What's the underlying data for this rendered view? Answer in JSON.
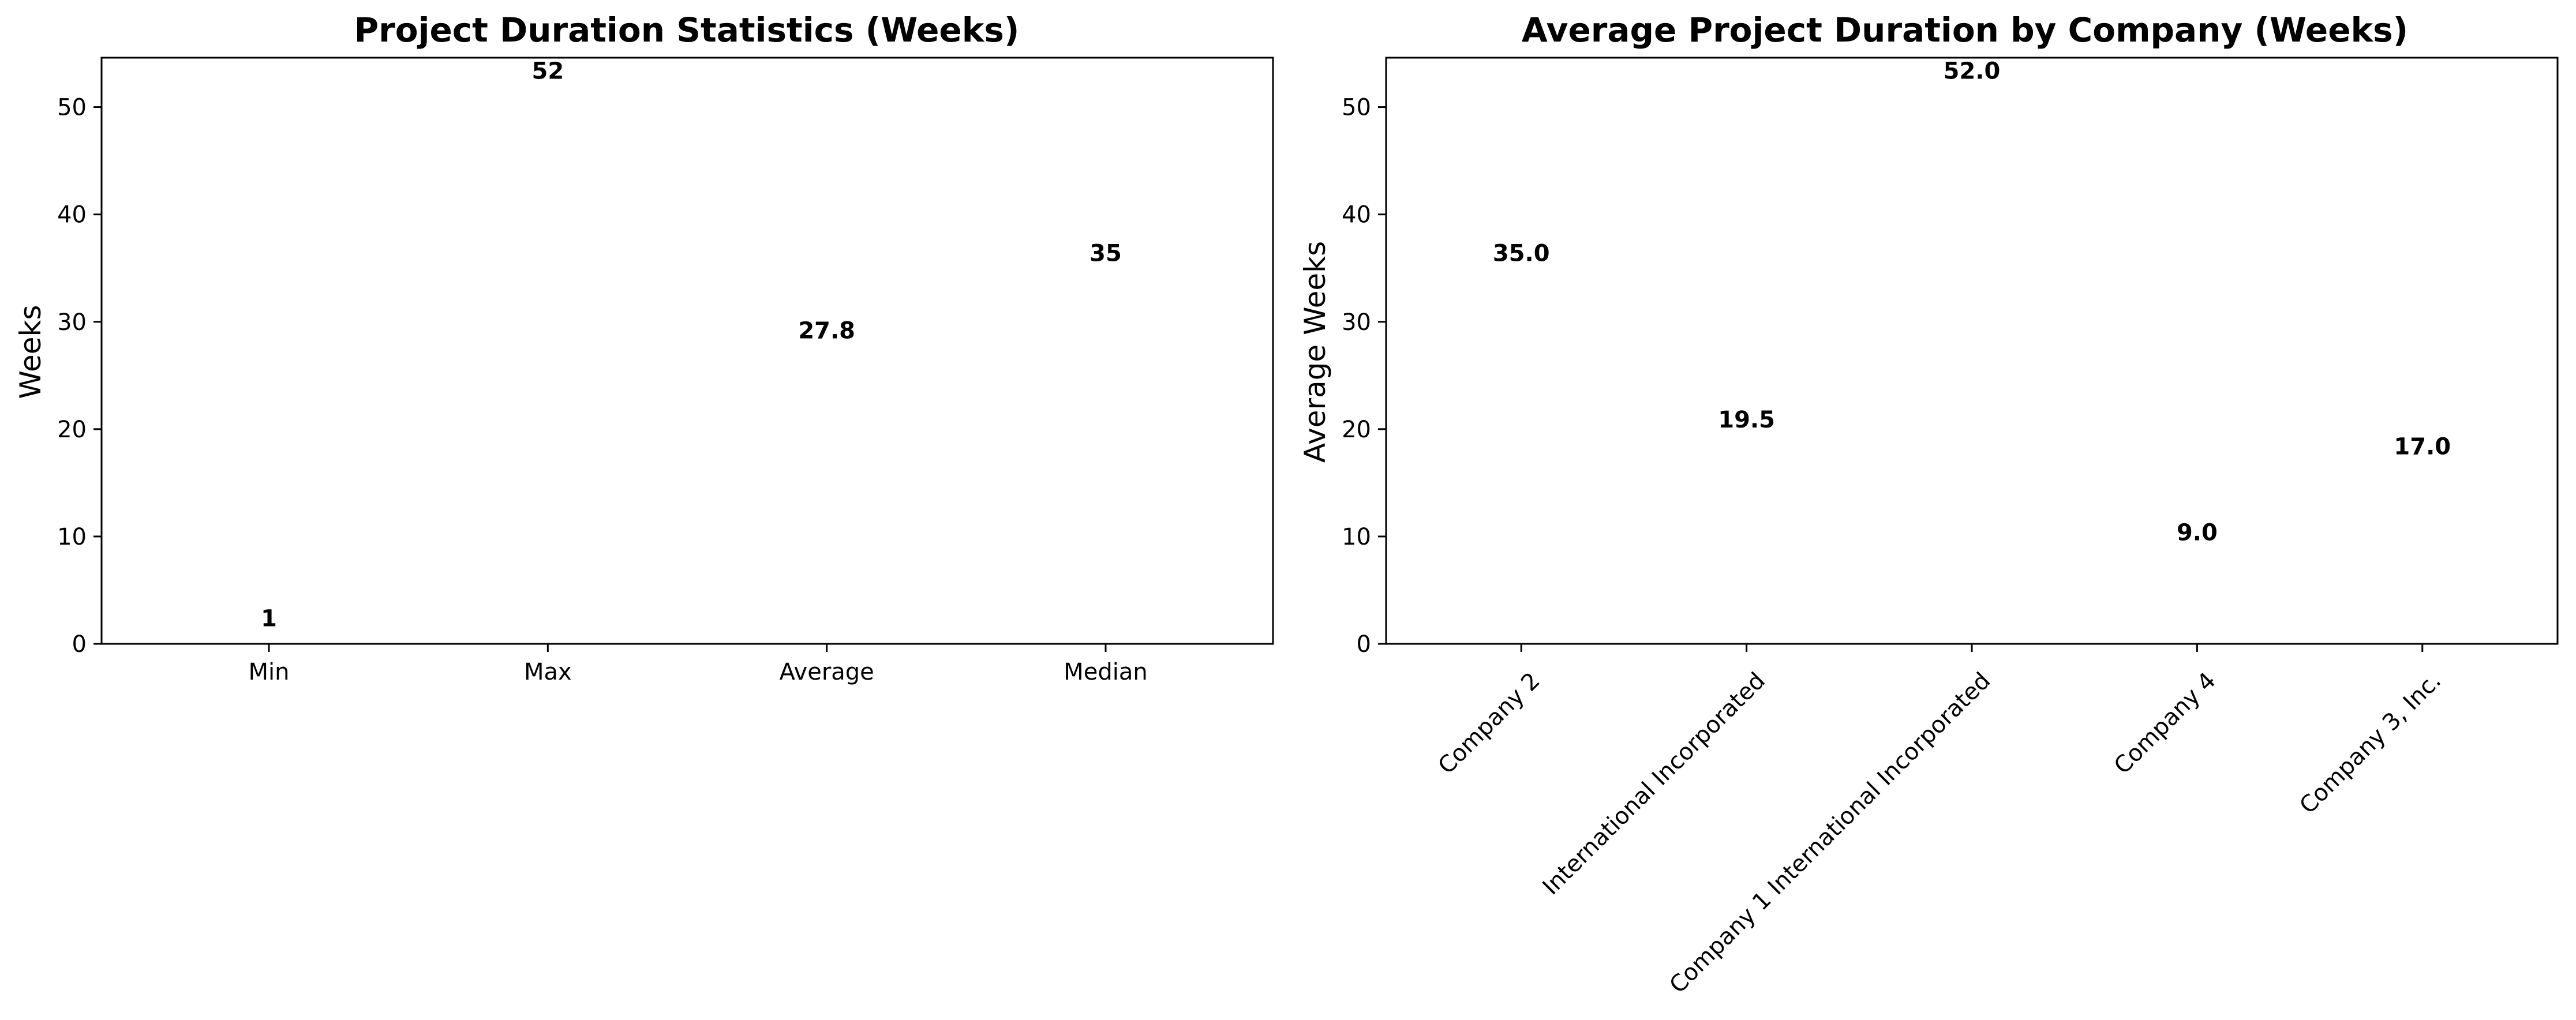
{
  "chart_data": [
    {
      "type": "bar",
      "title": "Project Duration Statistics (Weeks)",
      "xlabel": "",
      "ylabel": "Weeks",
      "categories": [
        "Min",
        "Max",
        "Average",
        "Median"
      ],
      "values": [
        1,
        52,
        27.8,
        35
      ],
      "value_labels": [
        "1",
        "52",
        "27.8",
        "35"
      ],
      "colors": [
        "#ff9999",
        "#66b3ff",
        "#99ff99",
        "#ffcc99"
      ],
      "ylim": [
        0,
        54.6
      ],
      "yticks": [
        0,
        10,
        20,
        30,
        40,
        50
      ],
      "grid": false,
      "legend": "none"
    },
    {
      "type": "bar",
      "title": "Average Project Duration by Company (Weeks)",
      "xlabel": "",
      "ylabel": "Average Weeks",
      "categories": [
        "Company 2",
        "International Incorporated",
        "Company 1 International Incorporated",
        "Company 4",
        "Company 3, Inc."
      ],
      "values": [
        35.0,
        19.5,
        52.0,
        9.0,
        17.0
      ],
      "value_labels": [
        "35.0",
        "19.5",
        "52.0",
        "9.0",
        "17.0"
      ],
      "colors": [
        "#f08080",
        "#f08080",
        "#f08080",
        "#f08080",
        "#f08080"
      ],
      "ylim": [
        0,
        54.6
      ],
      "yticks": [
        0,
        10,
        20,
        30,
        40,
        50
      ],
      "tick_rotation": 45,
      "grid": false,
      "legend": "none"
    }
  ]
}
